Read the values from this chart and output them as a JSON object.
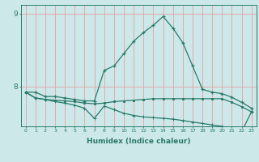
{
  "xlabel": "Humidex (Indice chaleur)",
  "background_color": "#cce8e8",
  "line_color": "#2a7a6a",
  "grid_color": "#e8a0a0",
  "x_values": [
    0,
    1,
    2,
    3,
    4,
    5,
    6,
    7,
    8,
    9,
    10,
    11,
    12,
    13,
    14,
    15,
    16,
    17,
    18,
    19,
    20,
    21,
    22,
    23
  ],
  "line1": [
    7.92,
    7.92,
    7.86,
    7.86,
    7.84,
    7.82,
    7.8,
    7.8,
    8.22,
    8.28,
    8.45,
    8.62,
    8.74,
    8.84,
    8.96,
    8.8,
    8.6,
    8.28,
    7.96,
    7.92,
    7.9,
    7.85,
    7.78,
    7.7
  ],
  "line2": [
    7.92,
    7.84,
    7.82,
    7.81,
    7.8,
    7.79,
    7.77,
    7.76,
    7.77,
    7.79,
    7.8,
    7.81,
    7.82,
    7.83,
    7.83,
    7.83,
    7.83,
    7.83,
    7.83,
    7.83,
    7.83,
    7.78,
    7.72,
    7.65
  ],
  "line3": [
    7.92,
    7.84,
    7.82,
    7.79,
    7.77,
    7.74,
    7.7,
    7.56,
    7.73,
    7.68,
    7.63,
    7.6,
    7.58,
    7.57,
    7.56,
    7.55,
    7.53,
    7.51,
    7.49,
    7.47,
    7.45,
    7.41,
    7.38,
    7.65
  ],
  "yticks": [
    8,
    9
  ],
  "ylim": [
    7.45,
    9.12
  ],
  "xlim": [
    -0.5,
    23.5
  ]
}
